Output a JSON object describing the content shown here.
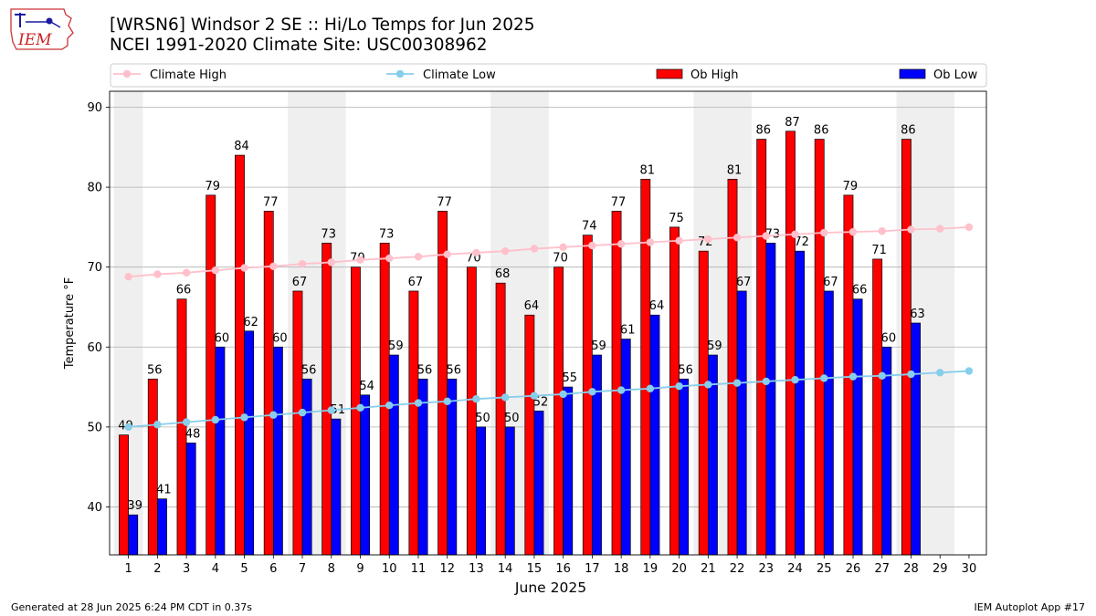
{
  "logo": {
    "text": "IEM",
    "icon": "iowa-state-outline-with-weather-station"
  },
  "title": {
    "line1": "[WRSN6] Windsor 2 SE :: Hi/Lo Temps for Jun 2025",
    "line2": "NCEI 1991-2020 Climate Site: USC00308962"
  },
  "footer": {
    "left": "Generated at 28 Jun 2025 6:24 PM CDT in 0.37s",
    "right": "IEM Autoplot App #17"
  },
  "colors": {
    "ob_high": "#ff0000",
    "ob_low": "#0000ff",
    "climate_high": "#ffc0cb",
    "climate_low": "#87ceeb",
    "weekend_band": "#efefef",
    "grid": "#b0b0b0"
  },
  "chart_data": {
    "type": "bar",
    "xlabel": "June 2025",
    "ylabel": "Temperature °F",
    "ylim": [
      34,
      92
    ],
    "yticks": [
      40,
      50,
      60,
      70,
      80,
      90
    ],
    "grid": true,
    "legend_position": "top",
    "categories": [
      "1",
      "2",
      "3",
      "4",
      "5",
      "6",
      "7",
      "8",
      "9",
      "10",
      "11",
      "12",
      "13",
      "14",
      "15",
      "16",
      "17",
      "18",
      "19",
      "20",
      "21",
      "22",
      "23",
      "24",
      "25",
      "26",
      "27",
      "28",
      "29",
      "30"
    ],
    "weekend_days": [
      1,
      7,
      8,
      14,
      15,
      21,
      22,
      28,
      29
    ],
    "series": [
      {
        "name": "Climate High",
        "kind": "line",
        "values": [
          68.8,
          69.1,
          69.3,
          69.6,
          69.9,
          70.1,
          70.4,
          70.6,
          70.9,
          71.1,
          71.3,
          71.6,
          71.8,
          72.0,
          72.3,
          72.5,
          72.7,
          72.9,
          73.1,
          73.3,
          73.5,
          73.7,
          73.9,
          74.1,
          74.3,
          74.4,
          74.5,
          74.7,
          74.8,
          75.0
        ]
      },
      {
        "name": "Climate Low",
        "kind": "line",
        "values": [
          50.0,
          50.3,
          50.6,
          50.9,
          51.2,
          51.5,
          51.8,
          52.1,
          52.4,
          52.7,
          53.0,
          53.2,
          53.5,
          53.7,
          53.9,
          54.1,
          54.4,
          54.6,
          54.8,
          55.1,
          55.3,
          55.5,
          55.7,
          55.9,
          56.1,
          56.3,
          56.4,
          56.6,
          56.8,
          57.0
        ]
      },
      {
        "name": "Ob High",
        "kind": "bar",
        "values": [
          49,
          56,
          66,
          79,
          84,
          77,
          67,
          73,
          70,
          73,
          67,
          77,
          70,
          68,
          64,
          70,
          74,
          77,
          81,
          75,
          72,
          81,
          86,
          87,
          86,
          79,
          71,
          86,
          null,
          null
        ]
      },
      {
        "name": "Ob Low",
        "kind": "bar",
        "values": [
          39,
          41,
          48,
          60,
          62,
          60,
          56,
          51,
          54,
          59,
          56,
          56,
          50,
          50,
          52,
          55,
          59,
          61,
          64,
          56,
          59,
          67,
          73,
          72,
          67,
          66,
          60,
          63,
          null,
          null
        ]
      }
    ]
  }
}
